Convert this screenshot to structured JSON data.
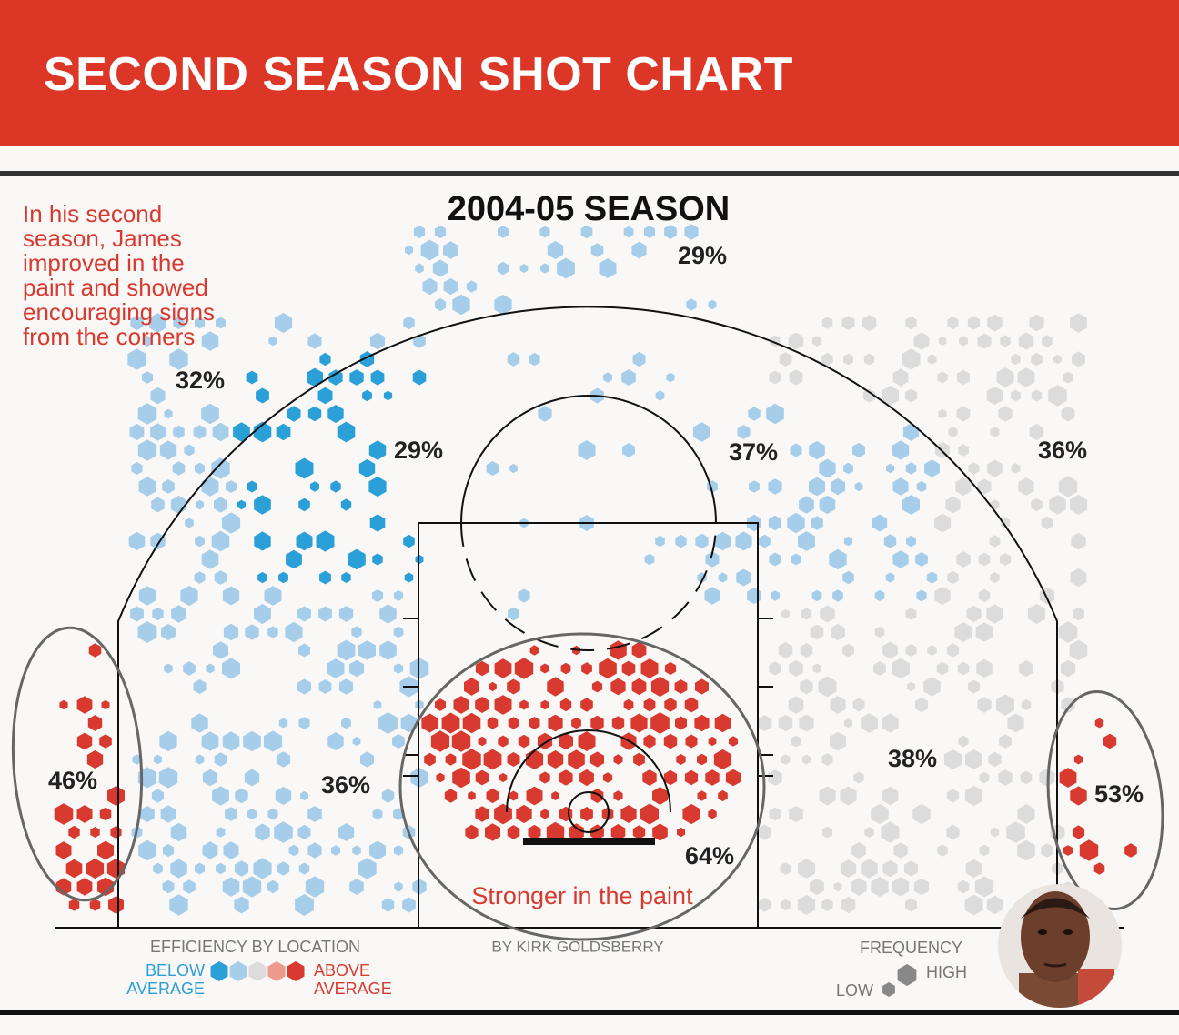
{
  "header": {
    "title": "SECOND SEASON SHOT CHART"
  },
  "chart": {
    "title": "2004-05 SEASON",
    "note_lines": [
      "In his second",
      "season, James",
      "improved in the",
      "paint and showed",
      "encouraging signs",
      "from the corners"
    ],
    "zone_labels": [
      "29%",
      "32%",
      "29%",
      "37%",
      "36%",
      "46%",
      "36%",
      "38%",
      "53%",
      "64%"
    ],
    "callout": "Stronger in the paint",
    "credit": "BY KIRK GOLDSBERRY"
  },
  "legend": {
    "efficiency": {
      "title": "EFFICIENCY BY LOCATION",
      "below": [
        "BELOW",
        "AVERAGE"
      ],
      "above": [
        "ABOVE",
        "AVERAGE"
      ]
    },
    "frequency": {
      "title": "FREQUENCY",
      "high": "HIGH",
      "low": "LOW"
    }
  }
}
